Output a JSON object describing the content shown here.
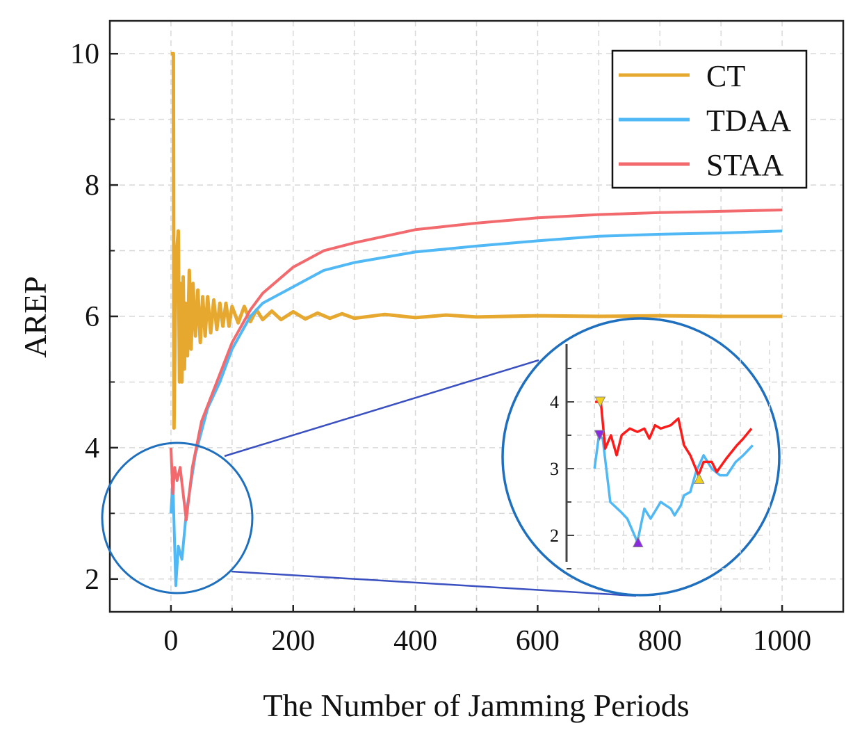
{
  "chart_data": {
    "type": "line",
    "title": "",
    "xlabel": "The Number of Jamming Periods",
    "ylabel": "AREP",
    "xlim": [
      -100,
      1100
    ],
    "ylim": [
      1.5,
      10.5
    ],
    "xticks": [
      0,
      200,
      400,
      600,
      800,
      1000
    ],
    "yticks": [
      2,
      4,
      6,
      8,
      10
    ],
    "grid": true,
    "legend_position": "top-right",
    "colors": {
      "CT": "#e6a82e",
      "TDAA": "#4fb8f5",
      "STAA": "#f26a6e",
      "inset_red": "#ff1a1a",
      "zoom": "#1f6fbf",
      "connector": "#3a50c0"
    },
    "series": [
      {
        "name": "CT",
        "x": [
          0,
          4,
          5,
          8,
          12,
          14,
          16,
          18,
          20,
          22,
          24,
          27,
          30,
          33,
          36,
          40,
          44,
          48,
          52,
          56,
          60,
          65,
          70,
          75,
          80,
          85,
          90,
          95,
          100,
          110,
          120,
          130,
          140,
          150,
          165,
          180,
          200,
          220,
          240,
          260,
          280,
          300,
          350,
          400,
          450,
          500,
          600,
          700,
          800,
          900,
          1000
        ],
        "y": [
          10,
          10,
          4.3,
          6.8,
          7.3,
          5.0,
          6.5,
          5.0,
          6.6,
          5.2,
          6.2,
          5.4,
          6.7,
          5.5,
          6.5,
          5.7,
          6.4,
          5.6,
          6.3,
          5.7,
          6.3,
          5.75,
          6.25,
          5.8,
          6.2,
          5.85,
          6.2,
          5.85,
          6.15,
          5.9,
          6.15,
          5.92,
          6.1,
          5.95,
          6.08,
          5.95,
          6.07,
          5.96,
          6.05,
          5.97,
          6.04,
          5.97,
          6.03,
          5.98,
          6.02,
          5.99,
          6.01,
          6.0,
          6.01,
          6.0,
          6.0
        ]
      },
      {
        "name": "TDAA",
        "x": [
          0,
          3,
          8,
          12,
          18,
          25,
          40,
          60,
          80,
          100,
          130,
          150,
          200,
          250,
          300,
          400,
          500,
          600,
          700,
          800,
          900,
          1000
        ],
        "y": [
          3.0,
          3.5,
          1.9,
          2.5,
          2.3,
          3.0,
          3.9,
          4.6,
          5.0,
          5.5,
          6.0,
          6.2,
          6.45,
          6.7,
          6.82,
          6.98,
          7.07,
          7.15,
          7.22,
          7.25,
          7.27,
          7.3
        ]
      },
      {
        "name": "STAA",
        "x": [
          0,
          3,
          6,
          10,
          15,
          25,
          35,
          50,
          75,
          100,
          130,
          150,
          200,
          250,
          300,
          400,
          500,
          600,
          700,
          800,
          900,
          1000
        ],
        "y": [
          4.0,
          3.3,
          3.7,
          3.5,
          3.7,
          2.9,
          3.7,
          4.4,
          5.0,
          5.6,
          6.1,
          6.35,
          6.75,
          7.0,
          7.12,
          7.32,
          7.42,
          7.5,
          7.55,
          7.58,
          7.6,
          7.62
        ]
      }
    ],
    "inset": {
      "yticks": [
        2,
        3,
        4
      ],
      "ylim": [
        1.3,
        4.8
      ],
      "xlim": [
        -2,
        28
      ],
      "series": [
        {
          "name": "TDAA",
          "x": [
            -0.1,
            0.6,
            1.2,
            2.4,
            4.1,
            5.1,
            6.7,
            7.8,
            8.8,
            10.4,
            12.0,
            12.6,
            13.6,
            14.1,
            15.1,
            16.0,
            17.2,
            18.5,
            19.8,
            20.9,
            22.3,
            23.5,
            25.0
          ],
          "y": [
            3.0,
            3.5,
            3.45,
            2.5,
            2.35,
            2.25,
            1.9,
            2.4,
            2.25,
            2.5,
            2.4,
            2.3,
            2.45,
            2.6,
            2.65,
            2.95,
            3.2,
            3.0,
            2.9,
            2.9,
            3.1,
            3.2,
            3.35
          ]
        },
        {
          "name": "STAA",
          "x": [
            0,
            0.9,
            1.6,
            2.5,
            3.4,
            4.2,
            5.5,
            6.7,
            7.8,
            8.6,
            9.5,
            10.4,
            12.0,
            13.2,
            14.1,
            15.1,
            16.4,
            17.2,
            18.5,
            19.3,
            20.8,
            22.5,
            23.5,
            24.8
          ],
          "y": [
            4.0,
            4.0,
            3.3,
            3.5,
            3.2,
            3.5,
            3.6,
            3.55,
            3.6,
            3.45,
            3.65,
            3.6,
            3.65,
            3.75,
            3.35,
            3.2,
            2.9,
            3.1,
            3.1,
            2.95,
            3.15,
            3.35,
            3.45,
            3.6
          ]
        }
      ],
      "markers": [
        {
          "shape": "triangle-down",
          "color": "#f2d21b",
          "x": 0.8,
          "y": 4.0
        },
        {
          "shape": "triangle-down",
          "color": "#8a2be2",
          "x": 0.7,
          "y": 3.5
        },
        {
          "shape": "triangle-up",
          "color": "#8a2be2",
          "x": 6.8,
          "y": 1.9
        },
        {
          "shape": "triangle-up",
          "color": "#f2d21b",
          "x": 16.5,
          "y": 2.85
        }
      ]
    }
  }
}
